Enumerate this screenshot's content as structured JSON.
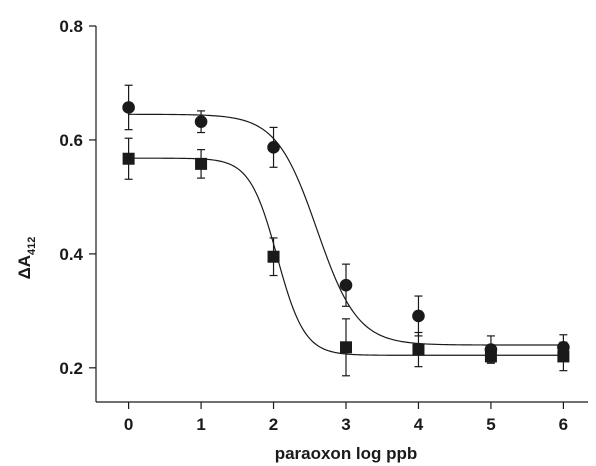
{
  "chart_data": {
    "type": "scatter",
    "title": "",
    "xlabel": "paraoxon log ppb",
    "ylabel_main": "ΔA",
    "ylabel_sub": "412",
    "xlim": [
      -0.45,
      6.45
    ],
    "ylim": [
      0.14,
      0.8
    ],
    "xticks": [
      0,
      1,
      2,
      3,
      4,
      5,
      6
    ],
    "yticks": [
      0.2,
      0.4,
      0.6,
      0.8
    ],
    "ytick_labels": [
      "0.2",
      "0.4",
      "0.6",
      "0.8"
    ],
    "grid": false,
    "series": [
      {
        "marker": "circle",
        "x": [
          0,
          1,
          2,
          3,
          4,
          5,
          6
        ],
        "y": [
          0.657,
          0.632,
          0.587,
          0.345,
          0.291,
          0.232,
          0.236
        ],
        "err": [
          0.039,
          0.019,
          0.035,
          0.037,
          0.035,
          0.024,
          0.022
        ],
        "fit": {
          "top": 0.645,
          "bottom": 0.24,
          "logEC50": 2.6,
          "hill": 1.55
        }
      },
      {
        "marker": "square",
        "x": [
          0,
          1,
          2,
          3,
          4,
          5,
          6
        ],
        "y": [
          0.567,
          0.558,
          0.395,
          0.236,
          0.232,
          0.22,
          0.22
        ],
        "err": [
          0.036,
          0.025,
          0.033,
          0.05,
          0.03,
          0.01,
          0.025
        ],
        "fit": {
          "top": 0.568,
          "bottom": 0.222,
          "logEC50": 2.05,
          "hill": 2.3
        }
      }
    ]
  }
}
